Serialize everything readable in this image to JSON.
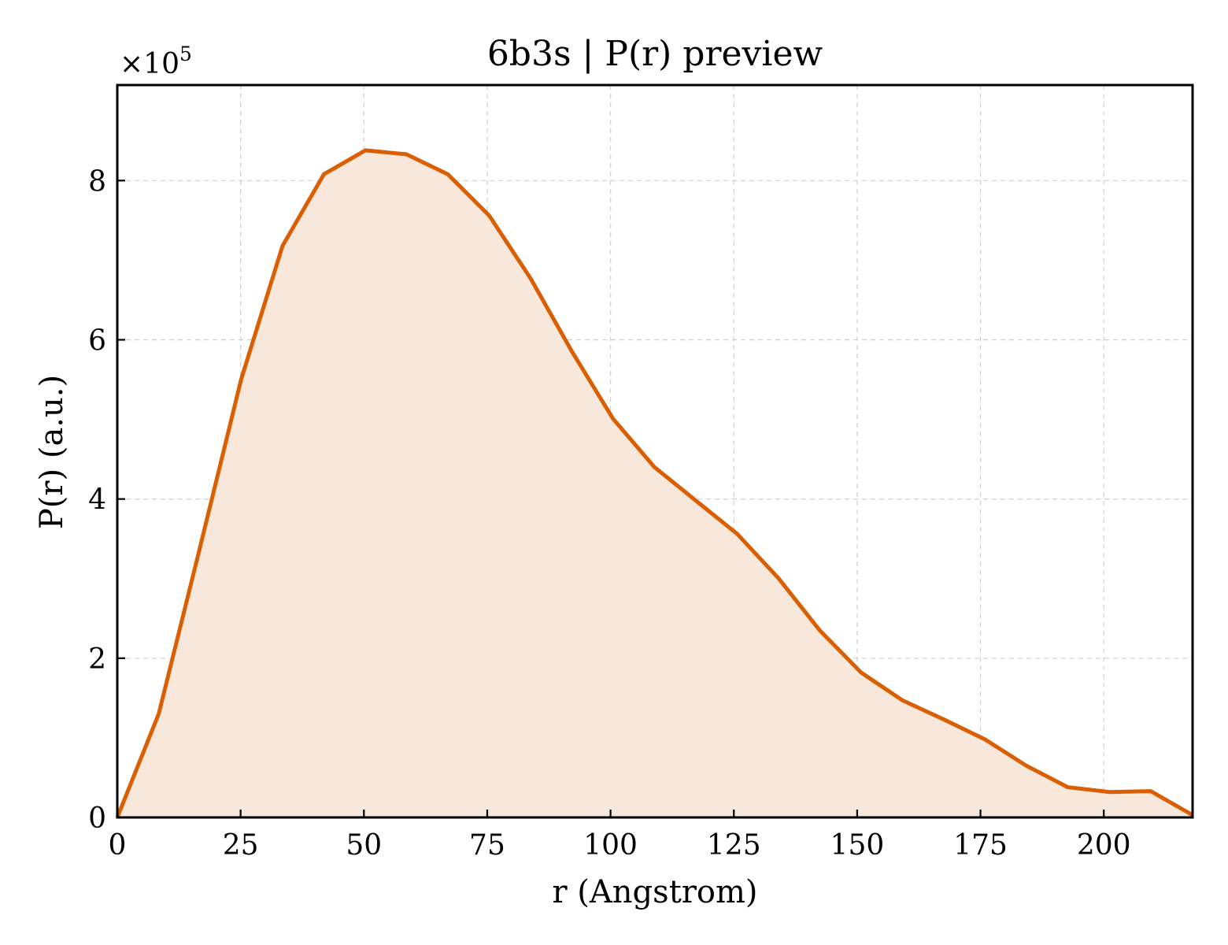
{
  "chart_data": {
    "type": "area",
    "title": "6b3s | P(r) preview",
    "xlabel": "r (Angstrom)",
    "ylabel": "P(r) (a.u.)",
    "y_multiplier": "×10",
    "y_multiplier_exponent": "5",
    "xlim": [
      0,
      218
    ],
    "ylim": [
      0,
      920000
    ],
    "x_ticks": [
      0,
      25,
      50,
      75,
      100,
      125,
      150,
      175,
      200
    ],
    "x_tick_labels": [
      "0",
      "25",
      "50",
      "75",
      "100",
      "125",
      "150",
      "175",
      "200"
    ],
    "y_ticks": [
      0,
      200000,
      400000,
      600000,
      800000
    ],
    "y_tick_labels": [
      "0",
      "2",
      "4",
      "6",
      "8"
    ],
    "grid": true,
    "line_color": "#d95f02",
    "fill_color": "#f8e8dc",
    "x": [
      0,
      8.4,
      16.8,
      25.1,
      33.5,
      41.9,
      50.3,
      58.6,
      67.0,
      75.4,
      83.8,
      92.2,
      100.5,
      108.9,
      117.3,
      125.7,
      134.1,
      142.4,
      150.8,
      159.2,
      167.6,
      175.9,
      184.3,
      192.7,
      201.1,
      209.5,
      218.0
    ],
    "y": [
      0,
      130000,
      340000,
      550000,
      718000,
      808000,
      838000,
      833000,
      808000,
      756000,
      677000,
      585000,
      501000,
      440000,
      398000,
      356000,
      300000,
      235000,
      182000,
      147000,
      123000,
      98000,
      65000,
      38000,
      32000,
      33000,
      3000
    ]
  }
}
